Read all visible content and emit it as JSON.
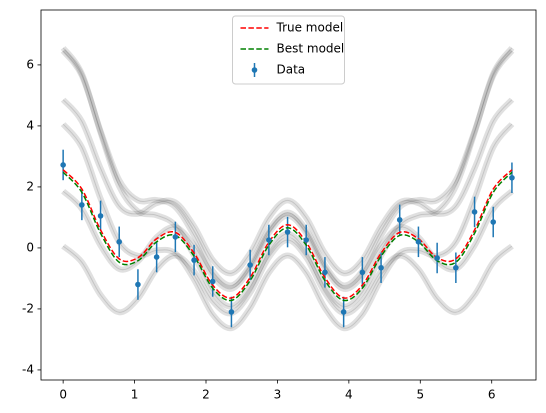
{
  "chart_data": {
    "type": "line",
    "x": [
      0,
      0.262,
      0.524,
      0.785,
      1.047,
      1.309,
      1.571,
      1.833,
      2.094,
      2.356,
      2.618,
      2.88,
      3.142,
      3.403,
      3.665,
      3.927,
      4.189,
      4.451,
      4.712,
      4.974,
      5.236,
      5.498,
      5.76,
      6.021,
      6.283
    ],
    "series": [
      {
        "name": "True model",
        "color": "#ff0000",
        "dashed": true,
        "values": [
          2.56,
          1.93,
          0.59,
          -0.36,
          -0.32,
          0.3,
          0.51,
          -0.17,
          -1.22,
          -1.64,
          -0.97,
          0.19,
          0.76,
          0.19,
          -0.97,
          -1.64,
          -1.22,
          -0.17,
          0.51,
          0.3,
          -0.32,
          -0.36,
          0.59,
          1.93,
          2.56
        ]
      },
      {
        "name": "Best model",
        "color": "#008000",
        "dashed": true,
        "values": [
          2.48,
          1.82,
          0.48,
          -0.47,
          -0.42,
          0.2,
          0.41,
          -0.27,
          -1.32,
          -1.72,
          -1.07,
          0.09,
          0.66,
          0.09,
          -1.07,
          -1.72,
          -1.32,
          -0.27,
          0.41,
          0.2,
          -0.42,
          -0.47,
          0.48,
          1.82,
          2.48
        ]
      }
    ],
    "data": {
      "name": "Data",
      "color": "#1f77b4",
      "values": [
        2.72,
        1.41,
        1.05,
        0.2,
        -1.2,
        -0.3,
        0.36,
        -0.4,
        -1.1,
        -2.1,
        -0.56,
        0.26,
        0.52,
        0.26,
        -0.8,
        -2.1,
        -0.8,
        -0.65,
        0.92,
        0.2,
        -0.33,
        -0.65,
        1.18,
        0.85,
        2.3
      ],
      "yerr": [
        0.5,
        0.5,
        0.5,
        0.5,
        0.5,
        0.5,
        0.5,
        0.5,
        0.5,
        0.5,
        0.5,
        0.5,
        0.5,
        0.5,
        0.5,
        0.5,
        0.5,
        0.5,
        0.5,
        0.5,
        0.5,
        0.5,
        0.5,
        0.5,
        0.5
      ]
    },
    "samples": {
      "color": "#000000",
      "opacity": 0.12,
      "values": [
        [
          6.46,
          5.65,
          3.83,
          2.22,
          1.56,
          1.57,
          1.34,
          0.41,
          -0.76,
          -1.23,
          -0.57,
          0.59,
          1.16,
          0.59,
          -0.57,
          -1.23,
          -0.76,
          0.41,
          1.34,
          1.57,
          1.56,
          2.22,
          3.83,
          5.65,
          6.46
        ],
        [
          0.06,
          -0.47,
          -1.54,
          -2.11,
          -1.66,
          -0.7,
          -0.25,
          -0.77,
          -1.75,
          -2.14,
          -1.47,
          -0.31,
          0.26,
          -0.31,
          -1.47,
          -2.14,
          -1.75,
          -0.77,
          -0.25,
          -0.7,
          -1.66,
          -2.11,
          -1.54,
          -0.47,
          0.06
        ],
        [
          4.86,
          4.15,
          2.61,
          1.37,
          1.12,
          1.47,
          1.49,
          0.71,
          -0.39,
          -0.83,
          -0.17,
          0.99,
          1.56,
          0.99,
          -0.17,
          -0.83,
          -0.39,
          0.71,
          1.49,
          1.47,
          1.12,
          1.37,
          2.61,
          4.15,
          4.86
        ],
        [
          4.06,
          3.3,
          1.62,
          0.19,
          -0.26,
          -0.08,
          -0.18,
          -1.04,
          -2.18,
          -2.63,
          -1.97,
          -0.81,
          -0.25,
          -0.81,
          -1.97,
          -2.63,
          -2.18,
          -1.04,
          -0.18,
          -0.08,
          -0.26,
          0.19,
          1.62,
          3.3,
          4.06
        ],
        [
          1.86,
          1.28,
          0.08,
          -0.69,
          -0.44,
          0.35,
          0.68,
          0.08,
          -0.93,
          -1.34,
          -0.67,
          0.49,
          1.06,
          0.49,
          -0.67,
          -1.34,
          -0.93,
          0.08,
          0.68,
          0.35,
          -0.44,
          -0.69,
          0.08,
          1.28,
          1.86
        ],
        [
          6.56,
          5.71,
          3.78,
          2.02,
          1.2,
          1.07,
          0.74,
          -0.25,
          -1.45,
          -1.92,
          -1.27,
          -0.11,
          0.46,
          -0.11,
          -1.27,
          -1.92,
          -1.45,
          -0.25,
          0.74,
          1.07,
          1.2,
          2.02,
          3.78,
          5.71,
          6.56
        ]
      ]
    },
    "xlim": [
      -0.31,
      6.62
    ],
    "ylim": [
      -4.33,
      7.8
    ],
    "xticks": [
      0,
      1,
      2,
      3,
      4,
      5,
      6
    ],
    "yticks": [
      -4,
      -2,
      0,
      2,
      4,
      6
    ],
    "legend": "upper center"
  }
}
